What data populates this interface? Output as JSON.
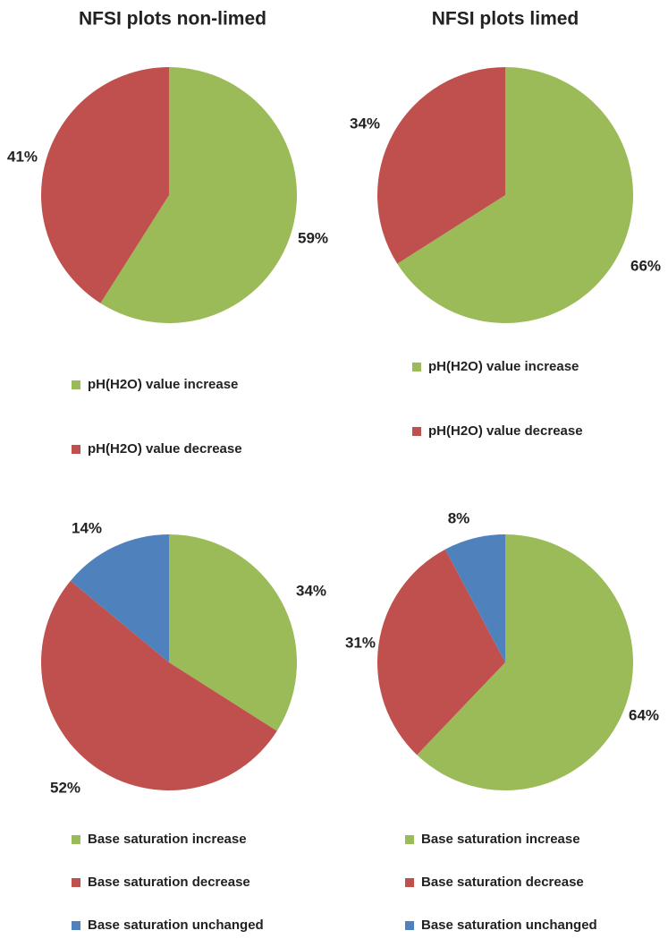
{
  "chart_data": [
    {
      "type": "pie",
      "title": "NFSI plots non-limed",
      "categories": [
        "pH(H2O) value increase",
        "pH(H2O) value decrease"
      ],
      "values": [
        59,
        41
      ],
      "value_labels": [
        "59%",
        "41%"
      ],
      "colors": [
        "#9bbb59",
        "#c0504d"
      ]
    },
    {
      "type": "pie",
      "title": "NFSI plots limed",
      "categories": [
        "pH(H2O) value increase",
        "pH(H2O) value decrease"
      ],
      "values": [
        66,
        34
      ],
      "value_labels": [
        "66%",
        "34%"
      ],
      "colors": [
        "#9bbb59",
        "#c0504d"
      ]
    },
    {
      "type": "pie",
      "categories": [
        "Base saturation increase",
        "Base saturation decrease",
        "Base saturation unchanged"
      ],
      "values": [
        34,
        52,
        14
      ],
      "value_labels": [
        "34%",
        "52%",
        "14%"
      ],
      "colors": [
        "#9bbb59",
        "#c0504d",
        "#4f81bd"
      ]
    },
    {
      "type": "pie",
      "categories": [
        "Base saturation increase",
        "Base saturation decrease",
        "Base saturation unchanged"
      ],
      "values": [
        64,
        31,
        8
      ],
      "value_labels": [
        "64%",
        "31%",
        "8%"
      ],
      "colors": [
        "#9bbb59",
        "#c0504d",
        "#4f81bd"
      ]
    }
  ]
}
